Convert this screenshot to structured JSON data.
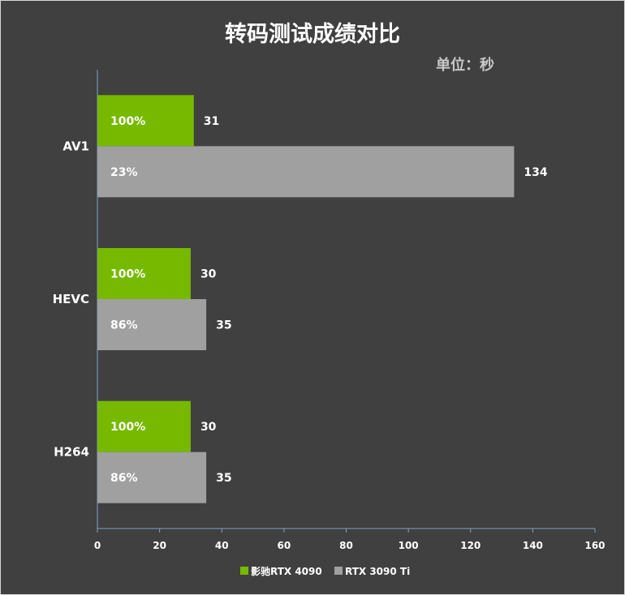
{
  "chart_data": {
    "type": "bar",
    "orientation": "horizontal",
    "title": "转码测试成绩对比",
    "unit_label": "单位：秒",
    "categories": [
      "AV1",
      "HEVC",
      "H264"
    ],
    "series": [
      {
        "name": "影驰RTX 4090",
        "color": "#76b900",
        "values": [
          31,
          30,
          30
        ],
        "percent_labels": [
          "100%",
          "100%",
          "100%"
        ]
      },
      {
        "name": "RTX 3090 Ti",
        "color": "#a0a0a0",
        "values": [
          134,
          35,
          35
        ],
        "percent_labels": [
          "23%",
          "86%",
          "86%"
        ]
      }
    ],
    "xlim": [
      0,
      160
    ],
    "xticks": [
      "0",
      "20",
      "40",
      "60",
      "80",
      "100",
      "120",
      "140",
      "160"
    ],
    "grid": false,
    "legend_position": "bottom"
  }
}
